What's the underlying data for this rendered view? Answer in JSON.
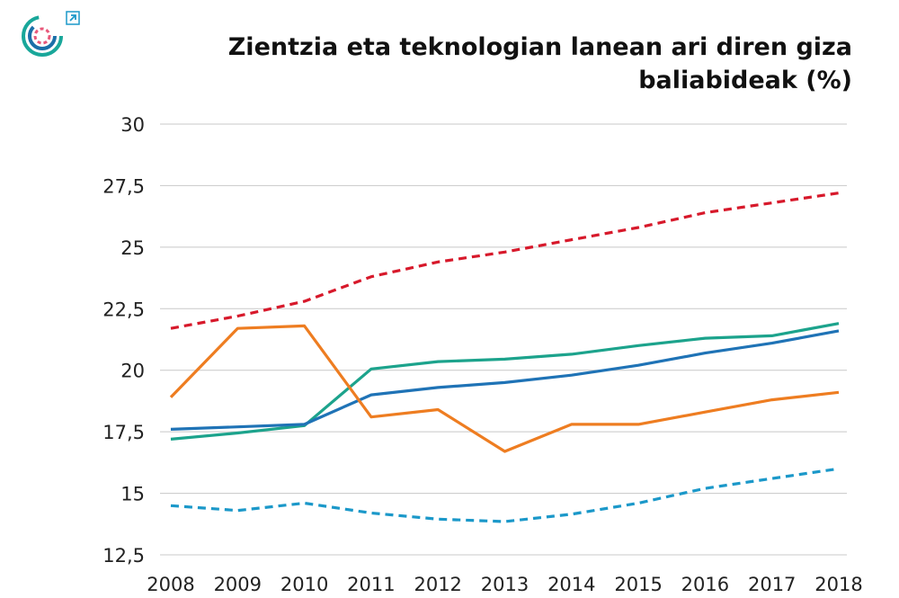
{
  "chart_data": {
    "type": "line",
    "title": "Zientzia eta teknologian lanean ari diren giza baliabideak (%)",
    "xlabel": "",
    "ylabel": "",
    "categories": [
      "2008",
      "2009",
      "2010",
      "2011",
      "2012",
      "2013",
      "2014",
      "2015",
      "2016",
      "2017",
      "2018"
    ],
    "ylim": [
      12.5,
      30
    ],
    "yticks": [
      12.5,
      15,
      17.5,
      20,
      22.5,
      25,
      27.5,
      30
    ],
    "ytick_labels": [
      "12,5",
      "15",
      "17,5",
      "20",
      "22,5",
      "25",
      "27,5",
      "30"
    ],
    "grid": true,
    "series": [
      {
        "name": "series-red-dashed",
        "color": "#d7192b",
        "dash": true,
        "values": [
          21.7,
          22.2,
          22.8,
          23.8,
          24.4,
          24.8,
          25.3,
          25.8,
          26.4,
          26.8,
          27.2
        ]
      },
      {
        "name": "series-teal",
        "color": "#1ca38c",
        "dash": false,
        "values": [
          17.2,
          17.45,
          17.75,
          20.05,
          20.35,
          20.45,
          20.65,
          21.0,
          21.3,
          21.4,
          21.9
        ]
      },
      {
        "name": "series-blue",
        "color": "#1f73b6",
        "dash": false,
        "values": [
          17.6,
          17.7,
          17.8,
          19.0,
          19.3,
          19.5,
          19.8,
          20.2,
          20.7,
          21.1,
          21.6
        ]
      },
      {
        "name": "series-orange",
        "color": "#ee7d21",
        "dash": false,
        "values": [
          18.9,
          21.7,
          21.8,
          18.1,
          18.4,
          16.7,
          17.8,
          17.8,
          18.3,
          18.8,
          19.1
        ]
      },
      {
        "name": "series-cyan-dashed",
        "color": "#1b98c9",
        "dash": true,
        "values": [
          14.5,
          14.3,
          14.6,
          14.2,
          13.95,
          13.85,
          14.15,
          14.6,
          15.2,
          15.6,
          16.0
        ]
      }
    ]
  },
  "header": {
    "logo_icon": "circular-logo-icon",
    "external_link_icon": "external-link-icon"
  }
}
